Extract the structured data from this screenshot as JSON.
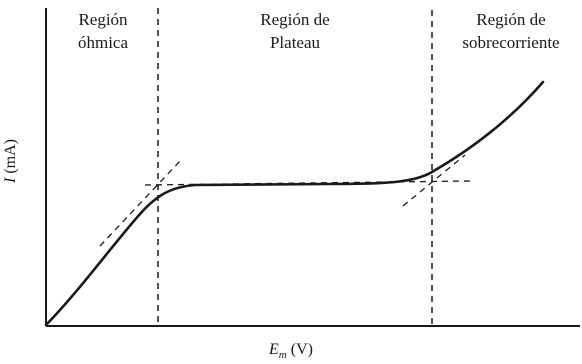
{
  "regions": {
    "ohmic": {
      "line1": "Región",
      "line2": "óhmica"
    },
    "plateau": {
      "line1": "Región de",
      "line2": "Plateau"
    },
    "overcurrent": {
      "line1": "Región de",
      "line2": "sobrecorriente"
    }
  },
  "y_axis": {
    "symbol": "I",
    "unit": " (mA)"
  },
  "x_axis": {
    "symbol": "E",
    "subscript": "m",
    "unit": " (V)"
  },
  "colors": {
    "line": "#1a1a1a",
    "background": "#ffffff"
  }
}
